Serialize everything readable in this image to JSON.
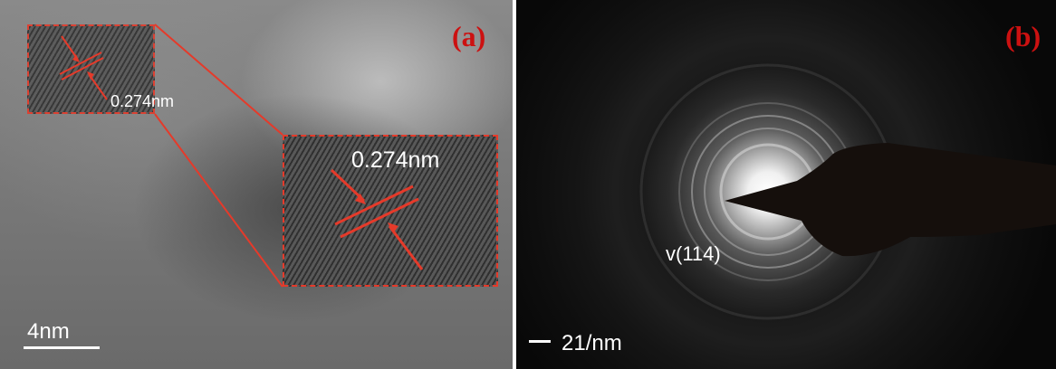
{
  "figure": {
    "panel_a": {
      "label": "(a)",
      "inset_small_measurement": "0.274nm",
      "inset_large_measurement": "0.274nm",
      "scale_bar_text": "4nm"
    },
    "panel_b": {
      "label": "(b)",
      "ring_label": "v(114)",
      "scale_bar_text": "21/nm"
    }
  },
  "colors": {
    "annotation_red": "#e53a2a",
    "label_red": "#cc1111",
    "text_white": "#ffffff"
  }
}
